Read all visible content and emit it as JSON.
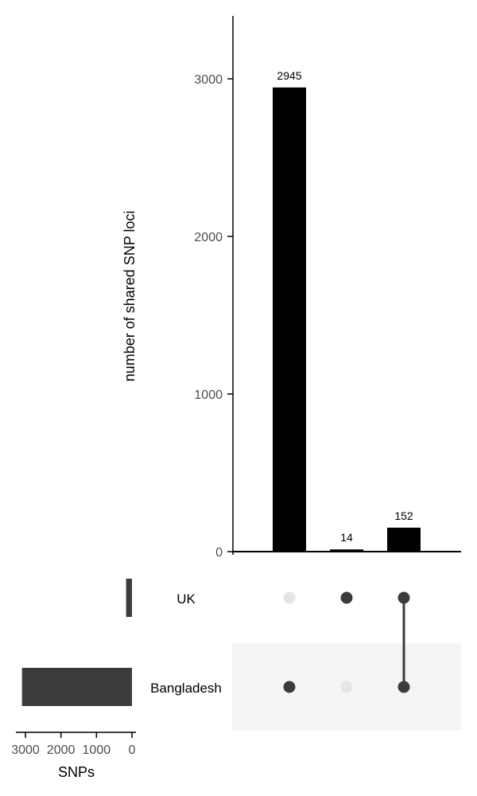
{
  "chart_data": {
    "type": "bar",
    "subtype": "upset",
    "ylabel": "number of shared SNP loci",
    "ylim": [
      0,
      3400
    ],
    "yticks": [
      0,
      1000,
      2000,
      3000
    ],
    "intersections": [
      {
        "sets": [
          "Bangladesh"
        ],
        "value": 2945,
        "label": "2945"
      },
      {
        "sets": [
          "UK"
        ],
        "value": 14,
        "label": "14"
      },
      {
        "sets": [
          "UK",
          "Bangladesh"
        ],
        "value": 152,
        "label": "152"
      }
    ],
    "sets": [
      {
        "name": "UK",
        "size": 166
      },
      {
        "name": "Bangladesh",
        "size": 3097
      }
    ],
    "set_size_axis": {
      "xlabel": "SNPs",
      "ticks": [
        3000,
        2000,
        1000,
        0
      ],
      "tick_labels": [
        "3000",
        "2000",
        "1000",
        "0"
      ],
      "xlim": [
        0,
        3200
      ]
    },
    "colors": {
      "bar": "#000000",
      "set_bar": "#3b3b3b",
      "dot_active": "#3b3b3b",
      "dot_inactive": "#e6e6e6",
      "stripe": "#f5f5f5"
    }
  }
}
